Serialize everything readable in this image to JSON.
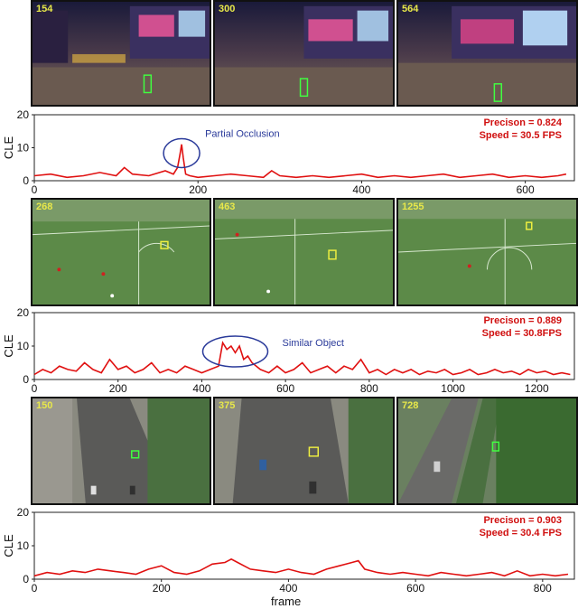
{
  "chart_data": [
    {
      "type": "line",
      "panel": "night-street",
      "frames": [
        "154",
        "300",
        "564"
      ],
      "ylabel": "CLE",
      "xlabel": "",
      "xlim": [
        0,
        660
      ],
      "ylim": [
        0,
        20
      ],
      "xticks": [
        "0",
        "200",
        "400",
        "600"
      ],
      "yticks": [
        "0",
        "10",
        "20"
      ],
      "annotation": "Partial Occlusion",
      "annotation_x": 180,
      "precision_label": "Precison = 0.824",
      "speed_label": "Speed = 30.5 FPS",
      "series": [
        {
          "color": "#e01010",
          "x": [
            0,
            20,
            40,
            60,
            80,
            100,
            110,
            120,
            140,
            160,
            170,
            175,
            178,
            180,
            182,
            185,
            190,
            200,
            220,
            240,
            260,
            280,
            290,
            300,
            320,
            340,
            360,
            380,
            400,
            420,
            440,
            460,
            480,
            500,
            520,
            540,
            560,
            580,
            600,
            620,
            640,
            650
          ],
          "y": [
            1.5,
            2,
            1,
            1.5,
            2.5,
            1.5,
            4,
            2,
            1.5,
            3,
            2,
            4,
            8,
            11,
            7,
            2,
            1.5,
            1,
            1.5,
            2,
            1.5,
            1,
            3,
            1.5,
            1,
            1.5,
            1,
            1.5,
            2,
            1,
            1.5,
            1,
            1.5,
            2,
            1,
            1.5,
            2,
            1,
            1.5,
            1,
            1.5,
            2
          ]
        }
      ]
    },
    {
      "type": "line",
      "panel": "soccer-field",
      "frames": [
        "268",
        "463",
        "1255"
      ],
      "ylabel": "CLE",
      "xlabel": "",
      "xlim": [
        0,
        1290
      ],
      "ylim": [
        0,
        20
      ],
      "xticks": [
        "0",
        "200",
        "400",
        "600",
        "800",
        "1000",
        "1200"
      ],
      "yticks": [
        "0",
        "10",
        "20"
      ],
      "annotation": "Similar Object",
      "annotation_x": 480,
      "precision_label": "Precison = 0.889",
      "speed_label": "Speed = 30.8FPS",
      "series": [
        {
          "color": "#e01010",
          "x": [
            0,
            20,
            40,
            60,
            80,
            100,
            120,
            140,
            160,
            180,
            200,
            220,
            240,
            260,
            280,
            300,
            320,
            340,
            360,
            380,
            400,
            420,
            440,
            450,
            460,
            470,
            480,
            490,
            500,
            510,
            520,
            540,
            560,
            580,
            600,
            620,
            640,
            660,
            680,
            700,
            720,
            740,
            760,
            780,
            800,
            820,
            840,
            860,
            880,
            900,
            920,
            940,
            960,
            980,
            1000,
            1020,
            1040,
            1060,
            1080,
            1100,
            1120,
            1140,
            1160,
            1180,
            1200,
            1220,
            1240,
            1260,
            1280
          ],
          "y": [
            1.5,
            3,
            2,
            4,
            3,
            2.5,
            5,
            3,
            2,
            6,
            3,
            4,
            2,
            3,
            5,
            2,
            3,
            2,
            4,
            3,
            2,
            3,
            4,
            11,
            9,
            10,
            8,
            10,
            6,
            7,
            5,
            3,
            2,
            4,
            2,
            3,
            5,
            2,
            3,
            4,
            2,
            4,
            3,
            6,
            2,
            3,
            1.5,
            3,
            2,
            3,
            1.5,
            2.5,
            2,
            3,
            1.5,
            2,
            3,
            1.5,
            2,
            3,
            2,
            2.5,
            1.5,
            3,
            2,
            2.5,
            1.5,
            2,
            1.5
          ]
        }
      ]
    },
    {
      "type": "line",
      "panel": "road-traffic",
      "frames": [
        "150",
        "375",
        "728"
      ],
      "ylabel": "CLE",
      "xlabel": "frame",
      "xlim": [
        0,
        850
      ],
      "ylim": [
        0,
        20
      ],
      "xticks": [
        "0",
        "200",
        "400",
        "600",
        "800"
      ],
      "yticks": [
        "0",
        "10",
        "20"
      ],
      "annotation": "",
      "precision_label": "Precison = 0.903",
      "speed_label": "Speed = 30.4 FPS",
      "series": [
        {
          "color": "#e01010",
          "x": [
            0,
            20,
            40,
            60,
            80,
            100,
            120,
            140,
            160,
            180,
            200,
            220,
            240,
            260,
            280,
            300,
            310,
            320,
            340,
            360,
            380,
            400,
            420,
            440,
            460,
            480,
            500,
            510,
            520,
            540,
            560,
            580,
            600,
            620,
            640,
            660,
            680,
            700,
            720,
            740,
            760,
            780,
            800,
            820,
            840
          ],
          "y": [
            1,
            2,
            1.5,
            2.5,
            2,
            3,
            2.5,
            2,
            1.5,
            3,
            4,
            2,
            1.5,
            2.5,
            4.5,
            5,
            6,
            5,
            3,
            2.5,
            2,
            3,
            2,
            1.5,
            3,
            4,
            5,
            5.5,
            3,
            2,
            1.5,
            2,
            1.5,
            1,
            2,
            1.5,
            1,
            1.5,
            2,
            1,
            2.5,
            1,
            1.5,
            1,
            1.5
          ]
        }
      ]
    }
  ]
}
